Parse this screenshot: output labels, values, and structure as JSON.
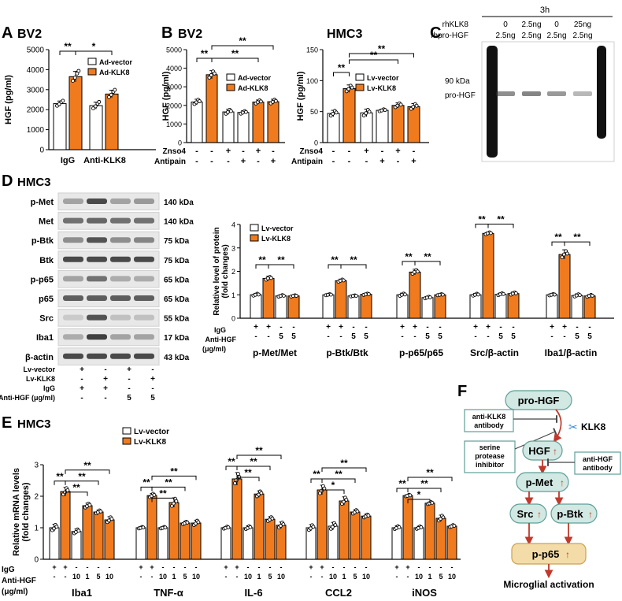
{
  "colors": {
    "orange": "#f07b1e",
    "dark": "#1a1a1a",
    "flowFill": "#d2e8e2",
    "flowStroke": "#5e9f98",
    "p65Fill": "#f3dca8",
    "p65Stroke": "#c9a24e",
    "arrow": "#c0392b"
  },
  "panels": {
    "A": {
      "letter": "A",
      "title": "BV2"
    },
    "B": {
      "letter": "B",
      "title_left": "BV2",
      "title_right": "HMC3"
    },
    "C": {
      "letter": "C",
      "time": "3h",
      "row1_label": "rhKLK8",
      "row2_label": "rhpro-HGF",
      "row1_values": [
        "0",
        "2.5ng",
        "0",
        "25ng"
      ],
      "row2_values": [
        "2.5ng",
        "2.5ng",
        "2.5ng",
        "2.5ng"
      ],
      "marker": "90 kDa",
      "band": "pro-HGF"
    },
    "D": {
      "letter": "D",
      "title": "HMC3",
      "blots": [
        {
          "name": "p-Met",
          "kda": "140 kDa"
        },
        {
          "name": "Met",
          "kda": "140 kDa"
        },
        {
          "name": "p-Btk",
          "kda": "75 kDa"
        },
        {
          "name": "Btk",
          "kda": "75 kDa"
        },
        {
          "name": "p-p65",
          "kda": "65 kDa"
        },
        {
          "name": "p65",
          "kda": "65 kDa"
        },
        {
          "name": "Src",
          "kda": "55 kDa"
        },
        {
          "name": "Iba1",
          "kda": "17 kDa"
        },
        {
          "name": "β-actin",
          "kda": "43 kDa"
        }
      ],
      "treat_labels": [
        "Lv-vector",
        "Lv-KLK8",
        "IgG",
        "Anti-HGF (μg/ml)"
      ],
      "treat_values": [
        [
          "+",
          "-",
          "+",
          "-"
        ],
        [
          "-",
          "+",
          "-",
          "+"
        ],
        [
          "+",
          "+",
          "-",
          "-"
        ],
        [
          "-",
          "-",
          "5",
          "5"
        ]
      ]
    },
    "E": {
      "letter": "E",
      "title": "HMC3"
    },
    "F": {
      "letter": "F",
      "nodes": {
        "proHGF": "pro-HGF",
        "hgf": "HGF",
        "pmet": "p-Met",
        "src": "Src",
        "pbtk": "p-Btk",
        "pp65": "p-p65"
      },
      "klk8": "KLK8",
      "box_anti_klk8": [
        "anti-KLK8",
        "antibody"
      ],
      "box_serine": [
        "serine",
        "protease",
        "inhibitor"
      ],
      "box_anti_hgf": [
        "anti-HGF",
        "antibody"
      ],
      "outcome": "Microglial activation"
    }
  },
  "chart_data": [
    {
      "id": "A",
      "type": "bar",
      "ylabel": "HGF (pg/ml)",
      "ylim": [
        0,
        5000
      ],
      "yticks": [
        0,
        1000,
        2000,
        3000,
        4000,
        5000
      ],
      "legend": [
        "Ad-vector",
        "Ad-KLK8"
      ],
      "groups": [
        "IgG",
        "Anti-KLK8"
      ],
      "values": [
        2300,
        3650,
        2200,
        2780
      ],
      "errors": [
        130,
        260,
        170,
        190
      ],
      "fill": [
        "white",
        "orange",
        "white",
        "orange"
      ],
      "sig": [
        {
          "label": "**",
          "from": 0,
          "to": 1
        },
        {
          "label": "*",
          "from": 1,
          "to": 3
        }
      ]
    },
    {
      "id": "B1",
      "type": "bar",
      "ylabel": "HGF (pg/ml)",
      "ylim": [
        0,
        5000
      ],
      "yticks": [
        0,
        1000,
        2000,
        3000,
        4000,
        5000
      ],
      "legend": [
        "Ad-vector",
        "Ad-KLK8"
      ],
      "values": [
        2180,
        3650,
        1650,
        1620,
        2180,
        2200
      ],
      "errors": [
        150,
        220,
        140,
        90,
        110,
        130
      ],
      "fill": [
        "white",
        "orange",
        "white",
        "white",
        "orange",
        "orange"
      ],
      "treat_labels": [
        "Znso4",
        "Antipain"
      ],
      "treat_values": [
        [
          "-",
          "-",
          "+",
          "-",
          "+",
          "-"
        ],
        [
          "-",
          "-",
          "-",
          "+",
          "-",
          "+"
        ]
      ],
      "sig": [
        {
          "label": "**",
          "from": 0,
          "to": 1
        },
        {
          "label": "**",
          "from": 1,
          "to": 4
        },
        {
          "label": "**",
          "from": 1,
          "to": 5
        }
      ]
    },
    {
      "id": "B2",
      "type": "bar",
      "ylabel": "HGF (pg/ml)",
      "ylim": [
        0,
        150
      ],
      "yticks": [
        0,
        50,
        100,
        150
      ],
      "legend": [
        "Lv-vector",
        "Lv-KLK8"
      ],
      "values": [
        47,
        87,
        48,
        52,
        60,
        58
      ],
      "errors": [
        5,
        6,
        6,
        2,
        4,
        5
      ],
      "fill": [
        "white",
        "orange",
        "white",
        "white",
        "orange",
        "orange"
      ],
      "treat_labels": [
        "Znso4",
        "Antipain"
      ],
      "treat_values": [
        [
          "-",
          "-",
          "+",
          "-",
          "+",
          "-"
        ],
        [
          "-",
          "-",
          "-",
          "+",
          "-",
          "+"
        ]
      ],
      "sig": [
        {
          "label": "**",
          "from": 0,
          "to": 1
        },
        {
          "label": "**",
          "from": 1,
          "to": 4
        },
        {
          "label": "**",
          "from": 1,
          "to": 5
        }
      ]
    },
    {
      "id": "D",
      "type": "bar",
      "ylabel": "Relative level of protein (fold changes)",
      "ylim": [
        0,
        4
      ],
      "yticks": [
        0,
        1,
        2,
        3,
        4
      ],
      "legend": [
        "Lv-vector",
        "Lv-KLK8"
      ],
      "groups": [
        "p-Met/Met",
        "p-Btk/Btk",
        "p-p65/p65",
        "Src/β-actin",
        "Iba1/β-actin"
      ],
      "values": [
        [
          1.0,
          1.7,
          0.95,
          0.95
        ],
        [
          1.0,
          1.6,
          0.95,
          1.02
        ],
        [
          1.0,
          1.97,
          0.88,
          1.0
        ],
        [
          1.0,
          3.62,
          1.02,
          1.05
        ],
        [
          1.0,
          2.72,
          0.97,
          0.95
        ]
      ],
      "errors": [
        [
          0.06,
          0.09,
          0.05,
          0.04
        ],
        [
          0.03,
          0.07,
          0.03,
          0.04
        ],
        [
          0.07,
          0.12,
          0.05,
          0.03
        ],
        [
          0.06,
          0.06,
          0.06,
          0.07
        ],
        [
          0.04,
          0.2,
          0.07,
          0.06
        ]
      ],
      "fill": [
        "white",
        "orange",
        "white",
        "orange"
      ],
      "treat_labels": [
        "IgG",
        "Anti-HGF",
        "(μg/ml)"
      ],
      "treat_values": [
        [
          "+",
          "+",
          "-",
          "-"
        ],
        [
          "-",
          "-",
          "5",
          "5"
        ]
      ],
      "sig_pairs": [
        [
          0,
          1
        ],
        [
          1,
          3
        ]
      ],
      "sig_label": "**"
    },
    {
      "id": "E",
      "type": "bar",
      "ylabel": "Relative mRNA levels (fold changes)",
      "ylim": [
        0,
        3
      ],
      "yticks": [
        0,
        1,
        2,
        3
      ],
      "legend": [
        "Lv-vector",
        "Lv-KLK8"
      ],
      "groups": [
        "Iba1",
        "TNF-α",
        "IL-6",
        "CCL2",
        "iNOS"
      ],
      "values": [
        [
          1.0,
          2.15,
          0.88,
          1.7,
          1.5,
          1.25
        ],
        [
          1.0,
          2.02,
          1.0,
          1.8,
          1.15,
          1.15
        ],
        [
          1.0,
          2.55,
          1.0,
          2.07,
          1.27,
          1.08
        ],
        [
          1.0,
          2.2,
          1.05,
          1.85,
          1.5,
          1.37
        ],
        [
          1.0,
          2.02,
          1.0,
          1.78,
          1.3,
          1.05
        ]
      ],
      "errors": [
        [
          0.11,
          0.13,
          0.08,
          0.08,
          0.06,
          0.1
        ],
        [
          0.03,
          0.07,
          0.03,
          0.15,
          0.05,
          0.09
        ],
        [
          0.04,
          0.2,
          0.06,
          0.1,
          0.08,
          0.1
        ],
        [
          0.1,
          0.15,
          0.12,
          0.13,
          0.07,
          0.06
        ],
        [
          0.06,
          0.03,
          0.05,
          0.04,
          0.1,
          0.04
        ]
      ],
      "fill": [
        "white",
        "orange",
        "white",
        "orange",
        "orange",
        "orange"
      ],
      "treat_labels": [
        "IgG",
        "Anti-HGF",
        "(μg/ml)"
      ],
      "treat_values": [
        [
          "+",
          "+",
          "-",
          "-",
          "-",
          "-"
        ],
        [
          "-",
          "-",
          "10",
          "1",
          "5",
          "10"
        ]
      ],
      "sig_short": [
        [
          "**",
          "**"
        ],
        [
          "**",
          "**"
        ],
        [
          "**",
          "**"
        ],
        [
          "**",
          "*"
        ],
        [
          "**",
          "*"
        ]
      ],
      "sig_long": [
        "**",
        "**",
        "**",
        "**",
        "**"
      ]
    }
  ]
}
